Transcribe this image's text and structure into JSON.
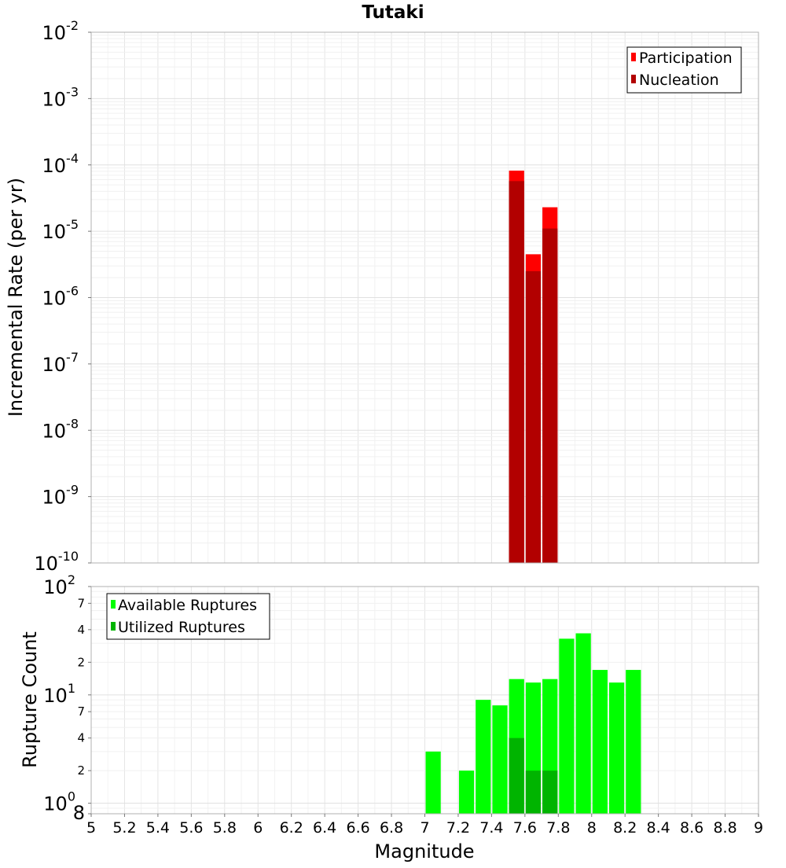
{
  "chart_data": [
    {
      "type": "bar",
      "panel": "top",
      "title": "Tutaki",
      "ylabel": "Incremental Rate (per yr)",
      "yscale": "log",
      "ylim": [
        1e-10,
        0.01
      ],
      "xlim": [
        5,
        9
      ],
      "ytick_labels": [
        {
          "base": "10",
          "exp": "-2",
          "value": 0.01
        },
        {
          "base": "10",
          "exp": "-3",
          "value": 0.001
        },
        {
          "base": "10",
          "exp": "-4",
          "value": 0.0001
        },
        {
          "base": "10",
          "exp": "-5",
          "value": 1e-05
        },
        {
          "base": "10",
          "exp": "-6",
          "value": 1e-06
        },
        {
          "base": "10",
          "exp": "-7",
          "value": 1e-07
        },
        {
          "base": "10",
          "exp": "-8",
          "value": 1e-08
        },
        {
          "base": "10",
          "exp": "-9",
          "value": 1e-09
        },
        {
          "base": "10",
          "exp": "-10",
          "value": 1e-10
        }
      ],
      "legend": {
        "position": "top-right",
        "entries": [
          "Participation",
          "Nucleation"
        ]
      },
      "series": [
        {
          "name": "Participation",
          "color": "#ff0000",
          "x": [
            7.55,
            7.65,
            7.75
          ],
          "values": [
            8.2e-05,
            4.5e-06,
            2.3e-05
          ]
        },
        {
          "name": "Nucleation",
          "color": "#b20000",
          "x": [
            7.55,
            7.65,
            7.75
          ],
          "values": [
            5.7e-05,
            2.5e-06,
            1.1e-05
          ]
        }
      ]
    },
    {
      "type": "bar",
      "panel": "bottom",
      "xlabel": "Magnitude",
      "ylabel": "Rupture Count",
      "yscale": "log",
      "ylim": [
        0.8,
        100
      ],
      "xlim": [
        5,
        9
      ],
      "xtick_labels": [
        "5",
        "5.2",
        "5.4",
        "5.6",
        "5.8",
        "6",
        "6.2",
        "6.4",
        "6.6",
        "6.8",
        "7",
        "7.2",
        "7.4",
        "7.6",
        "7.8",
        "8",
        "8.2",
        "8.4",
        "8.6",
        "8.8",
        "9"
      ],
      "ytick_labels": [
        {
          "base": "10",
          "exp": "2",
          "value": 100
        },
        {
          "label": "7",
          "value": 70
        },
        {
          "label": "4",
          "value": 40
        },
        {
          "label": "2",
          "value": 20
        },
        {
          "base": "10",
          "exp": "1",
          "value": 10
        },
        {
          "label": "7",
          "value": 7
        },
        {
          "label": "4",
          "value": 4
        },
        {
          "label": "2",
          "value": 2
        },
        {
          "base": "10",
          "exp": "0",
          "value": 1
        },
        {
          "label": "8",
          "value": 0.8
        }
      ],
      "legend": {
        "position": "top-left",
        "entries": [
          "Available Ruptures",
          "Utilized Ruptures"
        ]
      },
      "series": [
        {
          "name": "Available Ruptures",
          "color": "#00ff00",
          "x": [
            7.05,
            7.25,
            7.35,
            7.45,
            7.55,
            7.65,
            7.75,
            7.85,
            7.95,
            8.05,
            8.15,
            8.25
          ],
          "values": [
            3,
            2,
            9,
            8,
            14,
            13,
            14,
            33,
            37,
            17,
            13,
            17
          ]
        },
        {
          "name": "Utilized Ruptures",
          "color": "#00b400",
          "x": [
            7.55,
            7.65,
            7.75
          ],
          "values": [
            4,
            2,
            2
          ]
        }
      ]
    }
  ]
}
